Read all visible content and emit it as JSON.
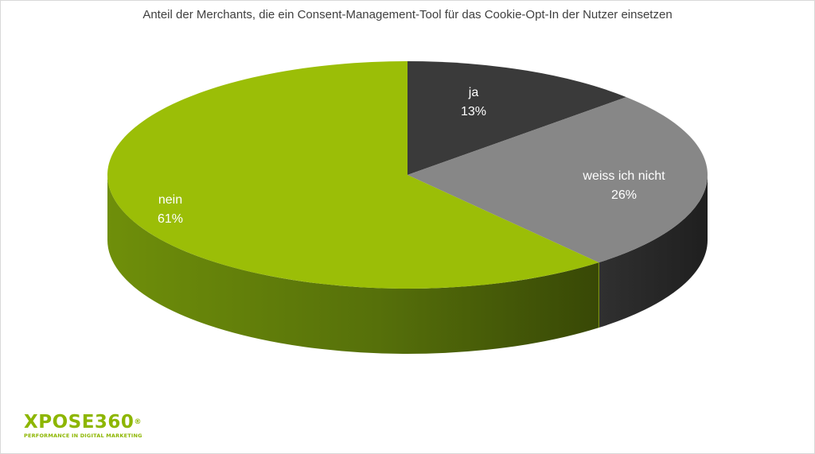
{
  "chart_data": {
    "type": "pie",
    "title": "Anteil der Merchants, die ein Consent-Management-Tool für das Cookie-Opt-In der Nutzer einsetzen",
    "slices": [
      {
        "label": "ja",
        "value": 13,
        "display": "13%",
        "color": "#3a3a3a",
        "side_color": "#2b2b2b"
      },
      {
        "label": "weiss ich nicht",
        "value": 26,
        "display": "26%",
        "color": "#878787",
        "side_color": "#2f2f2f"
      },
      {
        "label": "nein",
        "value": 61,
        "display": "61%",
        "color": "#9bbe07",
        "side_color": "#5e7a08"
      }
    ],
    "start_angle": "12 o'clock",
    "direction": "clockwise",
    "style": "3D"
  },
  "logo": {
    "text": "XPOSE360",
    "registered": "®",
    "tagline": "PERFORMANCE IN DIGITAL MARKETING"
  }
}
